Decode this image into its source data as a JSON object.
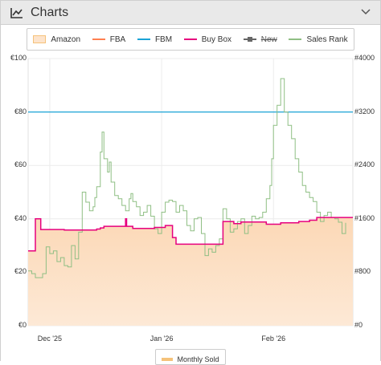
{
  "header": {
    "title": "Charts",
    "icon": "line-chart-icon",
    "toggle_icon": "chevron-icon"
  },
  "legend": [
    {
      "key": "amazon",
      "label": "Amazon",
      "color": "#fde4cc",
      "style": "area"
    },
    {
      "key": "fba",
      "label": "FBA",
      "color": "#ff7f50",
      "style": "line"
    },
    {
      "key": "fbm",
      "label": "FBM",
      "color": "#1aa3d6",
      "style": "line"
    },
    {
      "key": "buybox",
      "label": "Buy Box",
      "color": "#e6007e",
      "style": "line"
    },
    {
      "key": "new",
      "label": "New",
      "color": "#666666",
      "style": "line-disabled"
    },
    {
      "key": "salesrank",
      "label": "Sales Rank",
      "color": "#8fbf84",
      "style": "line"
    }
  ],
  "bottom_legend": {
    "label": "Monthly Sold",
    "color": "#f5c27a"
  },
  "chart_data": {
    "type": "line",
    "y_left": {
      "ticks": [
        "€0",
        "€20",
        "€40",
        "€60",
        "€80",
        "€100"
      ],
      "range": [
        0,
        100
      ]
    },
    "y_right": {
      "ticks": [
        "#0",
        "#800",
        "#1600",
        "#2400",
        "#3200",
        "#4000"
      ],
      "range": [
        0,
        4000
      ]
    },
    "x_ticks": [
      {
        "label": "Dec '25",
        "t": 6
      },
      {
        "label": "Jan '26",
        "t": 37
      },
      {
        "label": "Feb '26",
        "t": 68
      }
    ],
    "x_range": [
      0,
      90
    ],
    "grid": true,
    "series": [
      {
        "name": "FBM",
        "color": "#1aa3d6",
        "points": [
          [
            0,
            80
          ],
          [
            90,
            80
          ]
        ]
      },
      {
        "name": "Buy Box",
        "color": "#e6007e",
        "fill": "#fde4cc",
        "points": [
          [
            0,
            28
          ],
          [
            2,
            28
          ],
          [
            2,
            40
          ],
          [
            3.5,
            40
          ],
          [
            3.5,
            36
          ],
          [
            10,
            36
          ],
          [
            10,
            35.8
          ],
          [
            19,
            36.2
          ],
          [
            20,
            36.6
          ],
          [
            21,
            37.2
          ],
          [
            27,
            37.2
          ],
          [
            27,
            40
          ],
          [
            27.3,
            37.2
          ],
          [
            29,
            37.2
          ],
          [
            29,
            36.4
          ],
          [
            32,
            36.4
          ],
          [
            35,
            36.8
          ],
          [
            38,
            37.5
          ],
          [
            40,
            37.5
          ],
          [
            40,
            33
          ],
          [
            41,
            30.5
          ],
          [
            50,
            30.5
          ],
          [
            54,
            33.5
          ],
          [
            54,
            39
          ],
          [
            57,
            38.2
          ],
          [
            59,
            38.2
          ],
          [
            59,
            38.8
          ],
          [
            66,
            38.8
          ],
          [
            66,
            38
          ],
          [
            68,
            38
          ],
          [
            70,
            38.5
          ],
          [
            75,
            39
          ],
          [
            78,
            39.5
          ],
          [
            80,
            39.5
          ],
          [
            80,
            40.5
          ],
          [
            90,
            40.5
          ]
        ]
      },
      {
        "name": "Sales Rank",
        "color": "#8fbf84",
        "points": [
          [
            0,
            820
          ],
          [
            1,
            780
          ],
          [
            2,
            720
          ],
          [
            4,
            780
          ],
          [
            5,
            1180
          ],
          [
            6,
            1080
          ],
          [
            7,
            1120
          ],
          [
            8,
            960
          ],
          [
            9,
            1020
          ],
          [
            10,
            900
          ],
          [
            11,
            880
          ],
          [
            12,
            1200
          ],
          [
            13,
            1000
          ],
          [
            14,
            1400
          ],
          [
            15,
            2000
          ],
          [
            16,
            1850
          ],
          [
            17,
            1720
          ],
          [
            18,
            1780
          ],
          [
            18.5,
            1920
          ],
          [
            19,
            2080
          ],
          [
            20,
            2600
          ],
          [
            20.5,
            2900
          ],
          [
            21,
            2500
          ],
          [
            22,
            2300
          ],
          [
            22.5,
            2450
          ],
          [
            23,
            2150
          ],
          [
            24,
            1950
          ],
          [
            25,
            1900
          ],
          [
            26,
            1800
          ],
          [
            27,
            1720
          ],
          [
            28,
            1900
          ],
          [
            28.5,
            1980
          ],
          [
            29,
            1860
          ],
          [
            30,
            1780
          ],
          [
            31,
            1650
          ],
          [
            32,
            1700
          ],
          [
            33,
            1800
          ],
          [
            34,
            1640
          ],
          [
            35,
            1450
          ],
          [
            36,
            1380
          ],
          [
            37,
            1700
          ],
          [
            38,
            1850
          ],
          [
            39,
            1880
          ],
          [
            40,
            1860
          ],
          [
            41,
            1700
          ],
          [
            42,
            1800
          ],
          [
            43,
            1720
          ],
          [
            44,
            1500
          ],
          [
            45,
            1420
          ],
          [
            46,
            1600
          ],
          [
            47,
            1620
          ],
          [
            48,
            1380
          ],
          [
            49,
            1050
          ],
          [
            50,
            1150
          ],
          [
            51,
            1100
          ],
          [
            52,
            1200
          ],
          [
            53,
            1300
          ],
          [
            54,
            1750
          ],
          [
            55,
            1600
          ],
          [
            56,
            1400
          ],
          [
            57,
            1450
          ],
          [
            58,
            1560
          ],
          [
            59,
            1600
          ],
          [
            60,
            1380
          ],
          [
            61,
            1500
          ],
          [
            62,
            1640
          ],
          [
            63,
            1600
          ],
          [
            64,
            1620
          ],
          [
            65,
            1700
          ],
          [
            66,
            1900
          ],
          [
            67,
            2100
          ],
          [
            67.5,
            2500
          ],
          [
            68,
            3000
          ],
          [
            69,
            3300
          ],
          [
            70,
            3700
          ],
          [
            71,
            3200
          ],
          [
            72,
            3000
          ],
          [
            73,
            2800
          ],
          [
            74,
            2500
          ],
          [
            75,
            2300
          ],
          [
            76,
            2100
          ],
          [
            77,
            2000
          ],
          [
            78,
            1920
          ],
          [
            79,
            1860
          ],
          [
            80,
            1700
          ],
          [
            81,
            1560
          ],
          [
            82,
            1650
          ],
          [
            83,
            1700
          ],
          [
            84,
            1620
          ],
          [
            85,
            1600
          ],
          [
            86,
            1550
          ],
          [
            87,
            1380
          ],
          [
            88,
            1540
          ]
        ]
      }
    ]
  }
}
